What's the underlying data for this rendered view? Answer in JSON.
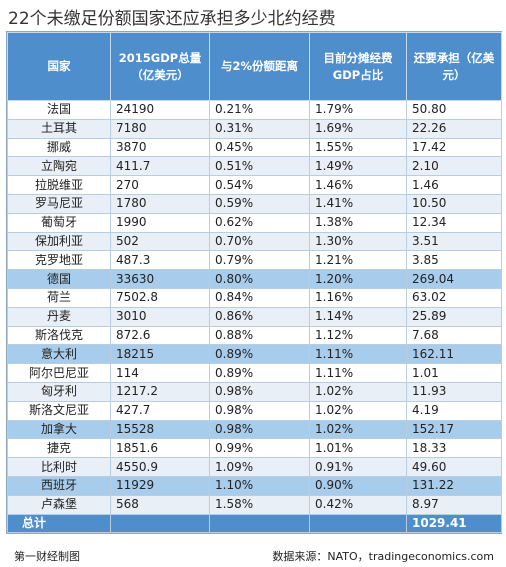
{
  "title": "22个未缴足份额国家还应承担多少北约经费",
  "source_left": "第一财经制图",
  "source_right": "数据来源：NATO，tradingeconomics.com",
  "colors": {
    "header": "#4f8ecd",
    "alt_row": "#e8eff6",
    "highlight": "#a8cdec"
  },
  "chart_data": {
    "type": "table",
    "title": "22个未缴足份额国家还应承担多少北约经费",
    "columns": [
      "国家",
      "2015GDP总量（亿美元）",
      "与2%份额距离",
      "目前分摊经费GDP占比",
      "还要承担（亿美元）"
    ],
    "rows": [
      [
        "法国",
        "24190",
        "0.21%",
        "1.79%",
        "50.80"
      ],
      [
        "土耳其",
        "7180",
        "0.31%",
        "1.69%",
        "22.26"
      ],
      [
        "挪威",
        "3870",
        "0.45%",
        "1.55%",
        "17.42"
      ],
      [
        "立陶宛",
        "411.7",
        "0.51%",
        "1.49%",
        "2.10"
      ],
      [
        "拉脱维亚",
        "270",
        "0.54%",
        "1.46%",
        "1.46"
      ],
      [
        "罗马尼亚",
        "1780",
        "0.59%",
        "1.41%",
        "10.50"
      ],
      [
        "葡萄牙",
        "1990",
        "0.62%",
        "1.38%",
        "12.34"
      ],
      [
        "保加利亚",
        "502",
        "0.70%",
        "1.30%",
        "3.51"
      ],
      [
        "克罗地亚",
        "487.3",
        "0.79%",
        "1.21%",
        "3.85"
      ],
      [
        "德国",
        "33630",
        "0.80%",
        "1.20%",
        "269.04"
      ],
      [
        "荷兰",
        "7502.8",
        "0.84%",
        "1.16%",
        "63.02"
      ],
      [
        "丹麦",
        "3010",
        "0.86%",
        "1.14%",
        "25.89"
      ],
      [
        "斯洛伐克",
        "872.6",
        "0.88%",
        "1.12%",
        "7.68"
      ],
      [
        "意大利",
        "18215",
        "0.89%",
        "1.11%",
        "162.11"
      ],
      [
        "阿尔巴尼亚",
        "114",
        "0.89%",
        "1.11%",
        "1.01"
      ],
      [
        "匈牙利",
        "1217.2",
        "0.98%",
        "1.02%",
        "11.93"
      ],
      [
        "斯洛文尼亚",
        "427.7",
        "0.98%",
        "1.02%",
        "4.19"
      ],
      [
        "加拿大",
        "15528",
        "0.98%",
        "1.02%",
        "152.17"
      ],
      [
        "捷克",
        "1851.6",
        "0.99%",
        "1.01%",
        "18.33"
      ],
      [
        "比利时",
        "4550.9",
        "1.09%",
        "0.91%",
        "49.60"
      ],
      [
        "西班牙",
        "11929",
        "1.10%",
        "0.90%",
        "131.22"
      ],
      [
        "卢森堡",
        "568",
        "1.58%",
        "0.42%",
        "8.97"
      ]
    ],
    "total": {
      "label": "总计",
      "value": "1029.41"
    }
  }
}
